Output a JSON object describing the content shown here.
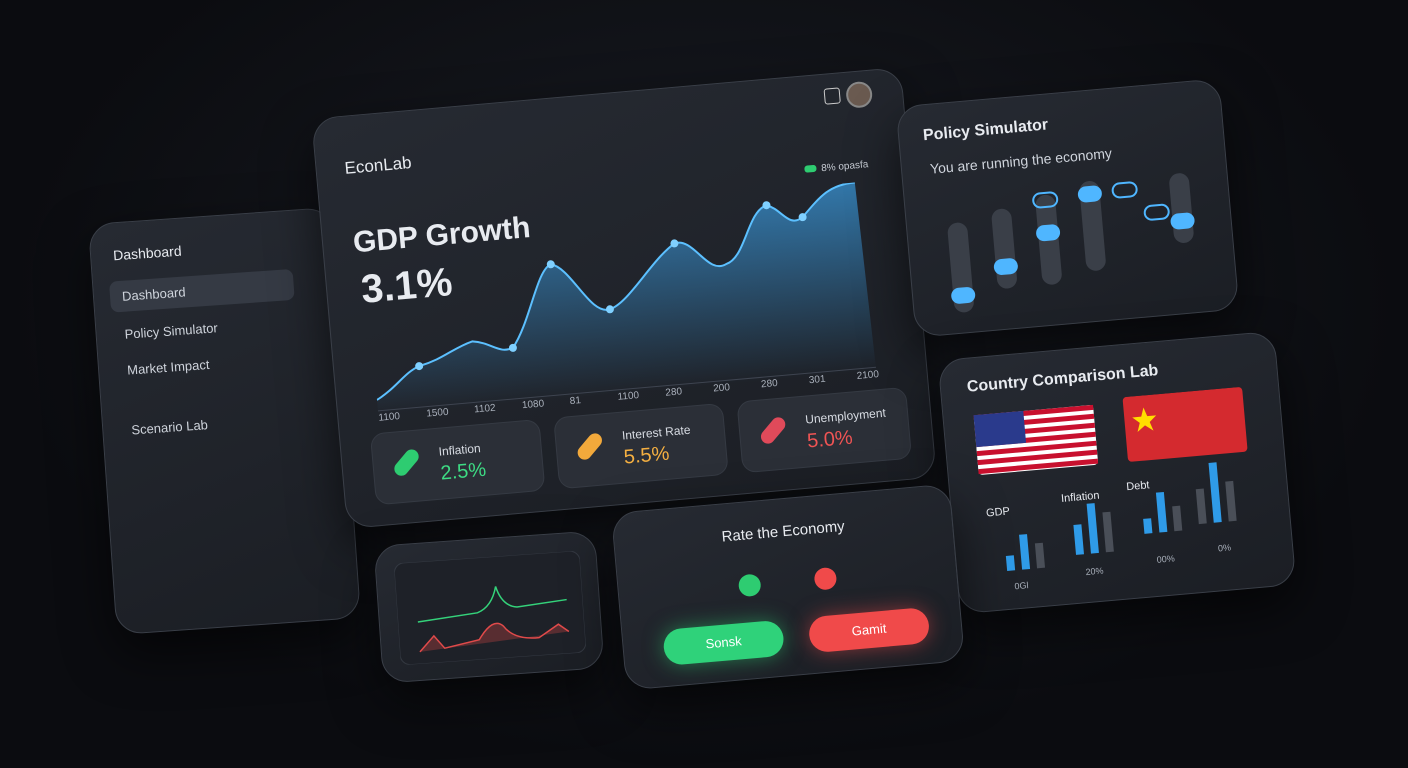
{
  "sidebar": {
    "title": "Dashboard",
    "items": [
      "Dashboard",
      "Policy Simulator",
      "Market Impact",
      "Scenario Lab"
    ]
  },
  "main": {
    "brand": "EconLab",
    "legend": "8% opasfa",
    "headline": "GDP Growth",
    "headline_value": "3.1%",
    "x_labels": [
      "1100",
      "1500",
      "1102",
      "1080",
      "81",
      "1100",
      "280",
      "200",
      "280",
      "301",
      "2100"
    ],
    "metrics": [
      {
        "label": "Inflation",
        "value": "2.5%"
      },
      {
        "label": "Interest Rate",
        "value": "5.5%"
      },
      {
        "label": "Unemployment",
        "value": "5.0%"
      }
    ]
  },
  "policy": {
    "title": "Policy Simulator",
    "subtitle": "You are running the economy"
  },
  "comparison": {
    "title": "Country Comparison Lab",
    "labels": [
      "GDP",
      "Inflation",
      "Debt"
    ],
    "axis_labels": [
      "0Gl",
      "20%",
      "00%",
      "0%"
    ]
  },
  "rate": {
    "title": "Rate the Economy",
    "buttons": [
      "Sonsk",
      "Gamit"
    ]
  }
}
